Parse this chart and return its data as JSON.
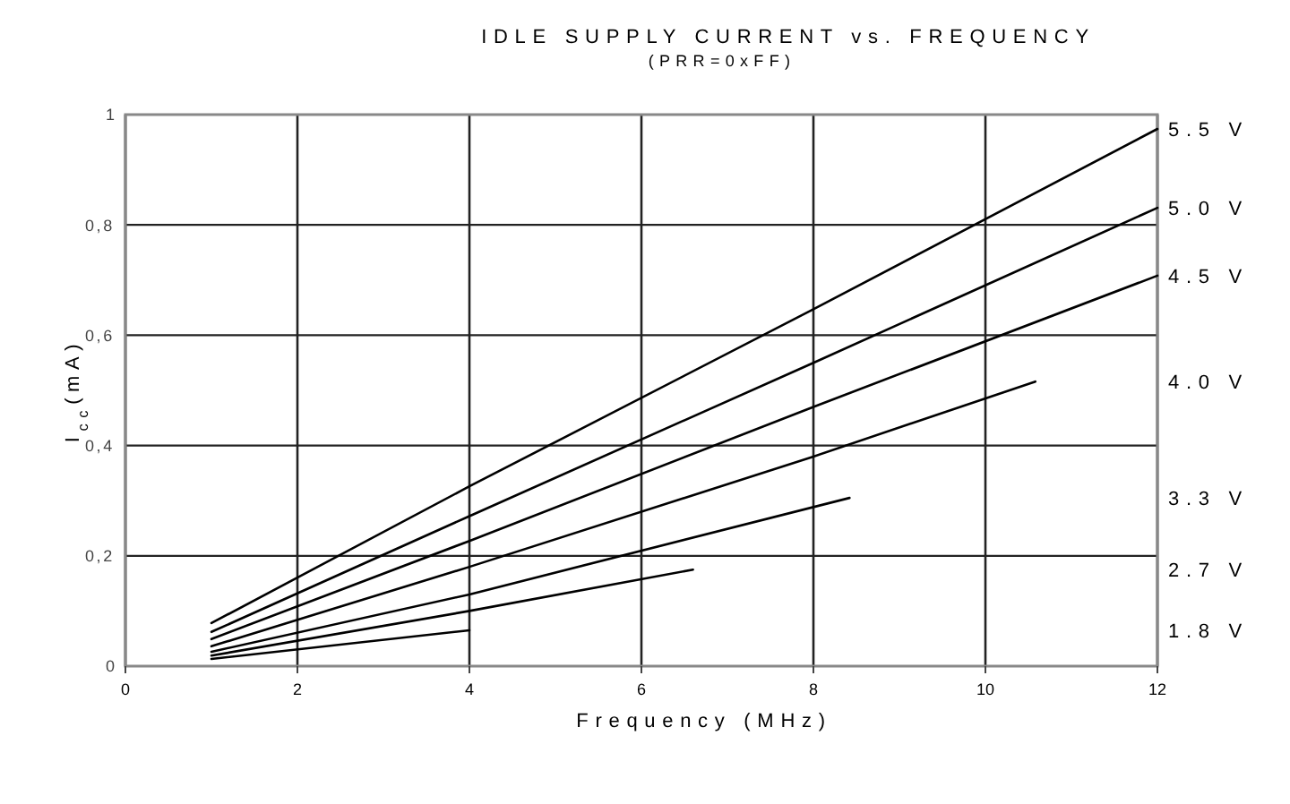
{
  "chart_data": {
    "type": "line",
    "title": "IDLE SUPPLY CURRENT vs. FREQUENCY",
    "subtitle": "(PRR=0xFF)",
    "xlabel": "Frequency (MHz)",
    "ylabel": "I$_{cc}$(mA)",
    "xlim": [
      0,
      12
    ],
    "xticks": [
      0,
      2,
      4,
      6,
      8,
      10,
      12
    ],
    "ylim": [
      0,
      1
    ],
    "yticks": [
      {
        "value": 0,
        "label": "0"
      },
      {
        "value": 0.2,
        "label": "0,2"
      },
      {
        "value": 0.4,
        "label": "0,4"
      },
      {
        "value": 0.6,
        "label": "0,6"
      },
      {
        "value": 0.8,
        "label": "0,8"
      },
      {
        "value": 1,
        "label": "1"
      }
    ],
    "grid": true,
    "marker": "none",
    "line_style": "solid",
    "series": [
      {
        "name": "5.5 V",
        "color": "#000000",
        "x": [
          1,
          4,
          8,
          12
        ],
        "values": [
          0.078,
          0.326,
          0.647,
          0.974
        ]
      },
      {
        "name": "5.0 V",
        "color": "#000000",
        "x": [
          1,
          4,
          8,
          12
        ],
        "values": [
          0.062,
          0.272,
          0.55,
          0.831
        ]
      },
      {
        "name": "4.5 V",
        "color": "#000000",
        "x": [
          1,
          4,
          8,
          12
        ],
        "values": [
          0.049,
          0.227,
          0.47,
          0.708
        ]
      },
      {
        "name": "4.0 V",
        "color": "#000000",
        "x": [
          1,
          4,
          8,
          10.58
        ],
        "values": [
          0.036,
          0.18,
          0.38,
          0.516
        ]
      },
      {
        "name": "3.3 V",
        "color": "#000000",
        "x": [
          1,
          4,
          8.42
        ],
        "values": [
          0.026,
          0.13,
          0.305
        ]
      },
      {
        "name": "2.7 V",
        "color": "#000000",
        "x": [
          1,
          4,
          6.6
        ],
        "values": [
          0.019,
          0.1,
          0.175
        ]
      },
      {
        "name": "1.8 V",
        "color": "#000000",
        "x": [
          1,
          4
        ],
        "values": [
          0.013,
          0.065
        ]
      }
    ]
  }
}
